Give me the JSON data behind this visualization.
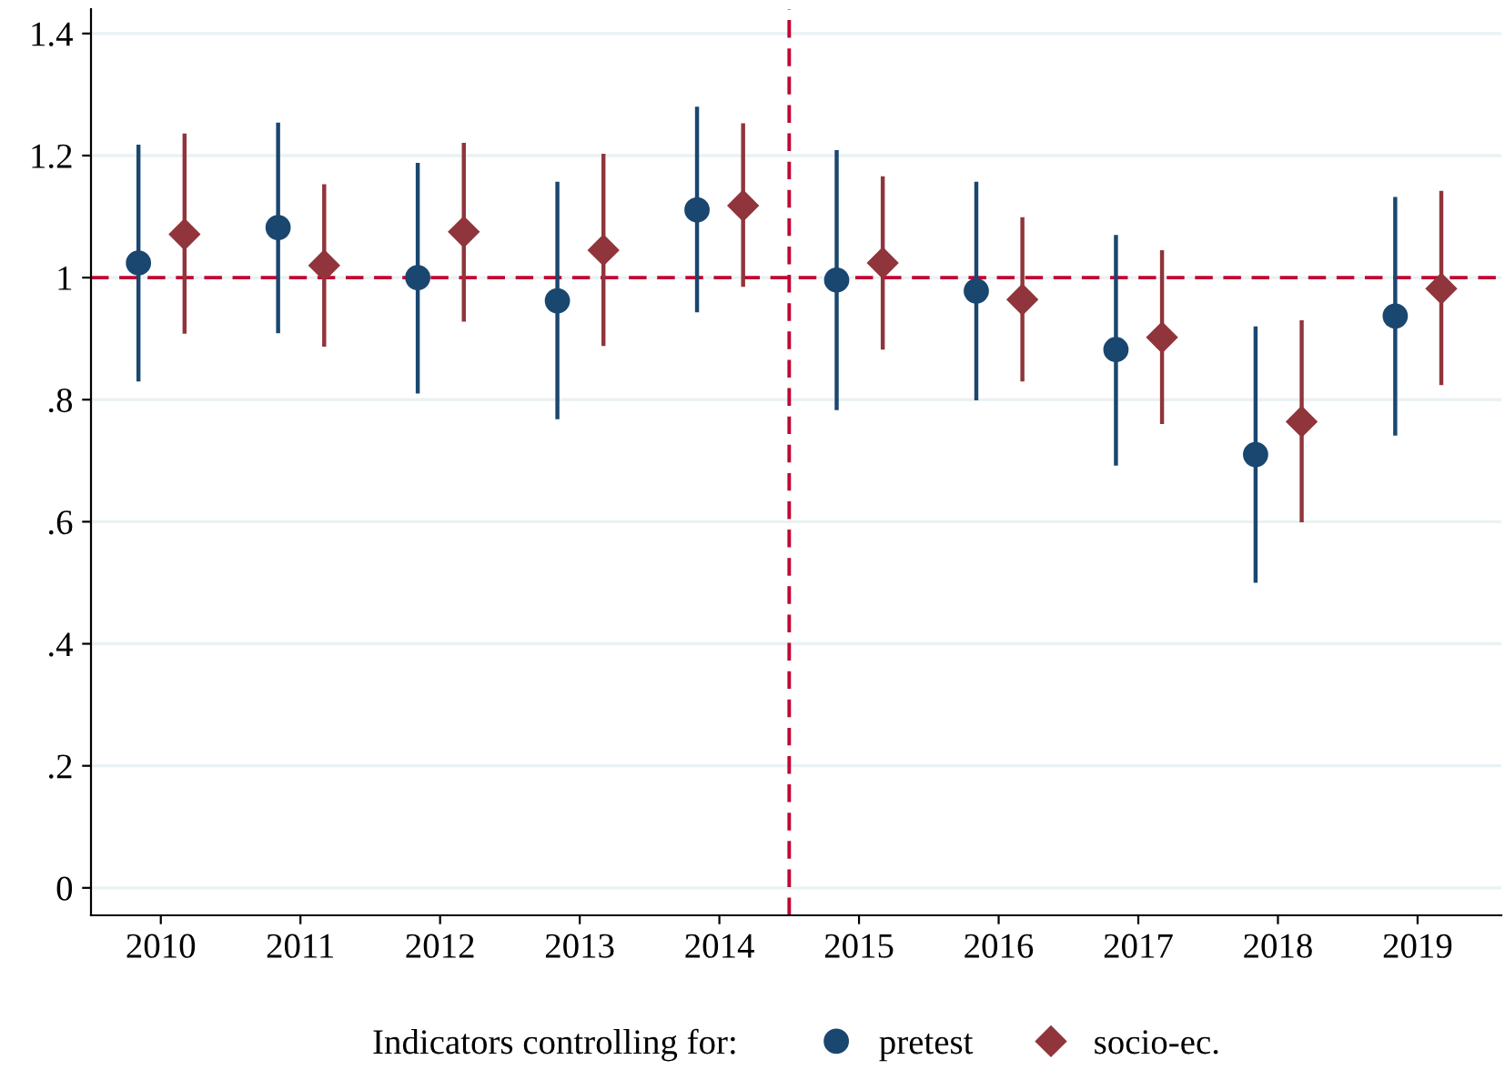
{
  "chart_data": {
    "type": "scatter",
    "series": [
      {
        "name": "pretest",
        "color": "#1a476f",
        "marker": "circle",
        "x": [
          2009.84,
          2010.84,
          2011.84,
          2012.84,
          2013.84,
          2014.84,
          2015.84,
          2016.84,
          2017.84,
          2018.84
        ],
        "values": [
          1.024,
          1.082,
          1.0,
          0.962,
          1.111,
          0.996,
          0.978,
          0.882,
          0.71,
          0.937
        ],
        "errors": [
          [
            0.83,
            1.218
          ],
          [
            0.909,
            1.254
          ],
          [
            0.81,
            1.188
          ],
          [
            0.768,
            1.157
          ],
          [
            0.943,
            1.28
          ],
          [
            0.783,
            1.209
          ],
          [
            0.799,
            1.157
          ],
          [
            0.692,
            1.07
          ],
          [
            0.5,
            0.92
          ],
          [
            0.741,
            1.132
          ]
        ]
      },
      {
        "name": "socio-ec.",
        "color": "#90353b",
        "marker": "diamond",
        "x": [
          2010.17,
          2011.17,
          2012.17,
          2013.17,
          2014.17,
          2015.17,
          2016.17,
          2017.17,
          2018.17,
          2019.17
        ],
        "values": [
          1.071,
          1.02,
          1.075,
          1.045,
          1.118,
          1.024,
          0.964,
          0.902,
          0.764,
          0.982
        ],
        "errors": [
          [
            0.908,
            1.236
          ],
          [
            0.887,
            1.153
          ],
          [
            0.928,
            1.221
          ],
          [
            0.888,
            1.203
          ],
          [
            0.985,
            1.253
          ],
          [
            0.882,
            1.166
          ],
          [
            0.83,
            1.099
          ],
          [
            0.76,
            1.045
          ],
          [
            0.599,
            0.93
          ],
          [
            0.824,
            1.142
          ]
        ]
      }
    ],
    "xlim": [
      2009.5,
      2019.6
    ],
    "xticks": [
      2010,
      2011,
      2012,
      2013,
      2014,
      2015,
      2016,
      2017,
      2018,
      2019
    ],
    "ylim": [
      -0.045,
      1.44
    ],
    "yticks": [
      0,
      {
        "value": 0.2,
        "label": ".2"
      },
      {
        "value": 0.4,
        "label": ".4"
      },
      {
        "value": 0.6,
        "label": ".6"
      },
      {
        "value": 0.8,
        "label": ".8"
      },
      1,
      1.2,
      1.4
    ],
    "ref_lines": [
      {
        "axis": "y",
        "value": 1,
        "color": "#c10534",
        "line_style": "dashed"
      },
      {
        "axis": "x",
        "value": 2014.5,
        "color": "#c10534",
        "line_style": "dashed"
      }
    ],
    "grid": "y",
    "legend": "bottom",
    "legend_title": "Indicators controlling for:"
  }
}
